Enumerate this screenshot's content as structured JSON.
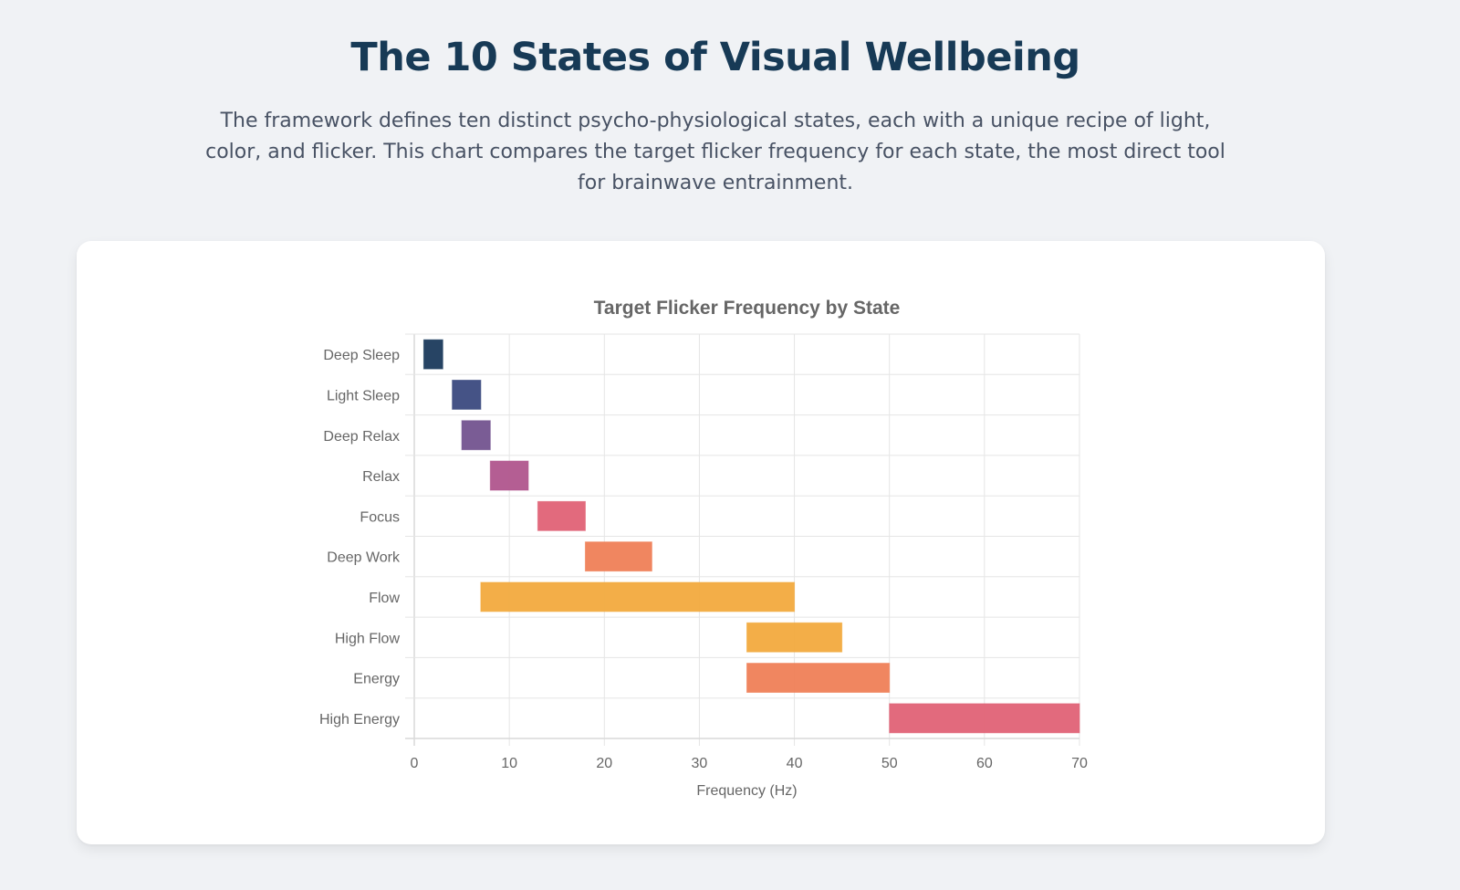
{
  "header": {
    "title": "The 10 States of Visual Wellbeing",
    "subtitle": "The framework defines ten distinct psycho-physiological states, each with a unique recipe of light, color, and flicker. This chart compares the target flicker frequency for each state, the most direct tool for brainwave entrainment."
  },
  "chart_data": {
    "type": "bar",
    "orientation": "horizontal",
    "subtype": "floating-range",
    "title": "Target Flicker Frequency by State",
    "xlabel": "Frequency (Hz)",
    "ylabel": "",
    "xlim": [
      0,
      70
    ],
    "x_ticks": [
      0,
      10,
      20,
      30,
      40,
      50,
      60,
      70
    ],
    "grid": true,
    "legend": "none",
    "categories": [
      "Deep Sleep",
      "Light Sleep",
      "Deep Relax",
      "Relax",
      "Focus",
      "Deep Work",
      "Flow",
      "High Flow",
      "Energy",
      "High Energy"
    ],
    "series": [
      {
        "name": "Target Flicker Frequency (Hz)",
        "ranges": [
          [
            1,
            3
          ],
          [
            4,
            7
          ],
          [
            5,
            8
          ],
          [
            8,
            12
          ],
          [
            13,
            18
          ],
          [
            18,
            25
          ],
          [
            7,
            40
          ],
          [
            35,
            45
          ],
          [
            35,
            50
          ],
          [
            50,
            70
          ]
        ],
        "colors": [
          "#1b3a5c",
          "#3b4a7f",
          "#73538f",
          "#b0558d",
          "#e06276",
          "#ef7f57",
          "#f2aa3e",
          "#f2aa3e",
          "#ef7f57",
          "#e06276"
        ]
      }
    ]
  }
}
